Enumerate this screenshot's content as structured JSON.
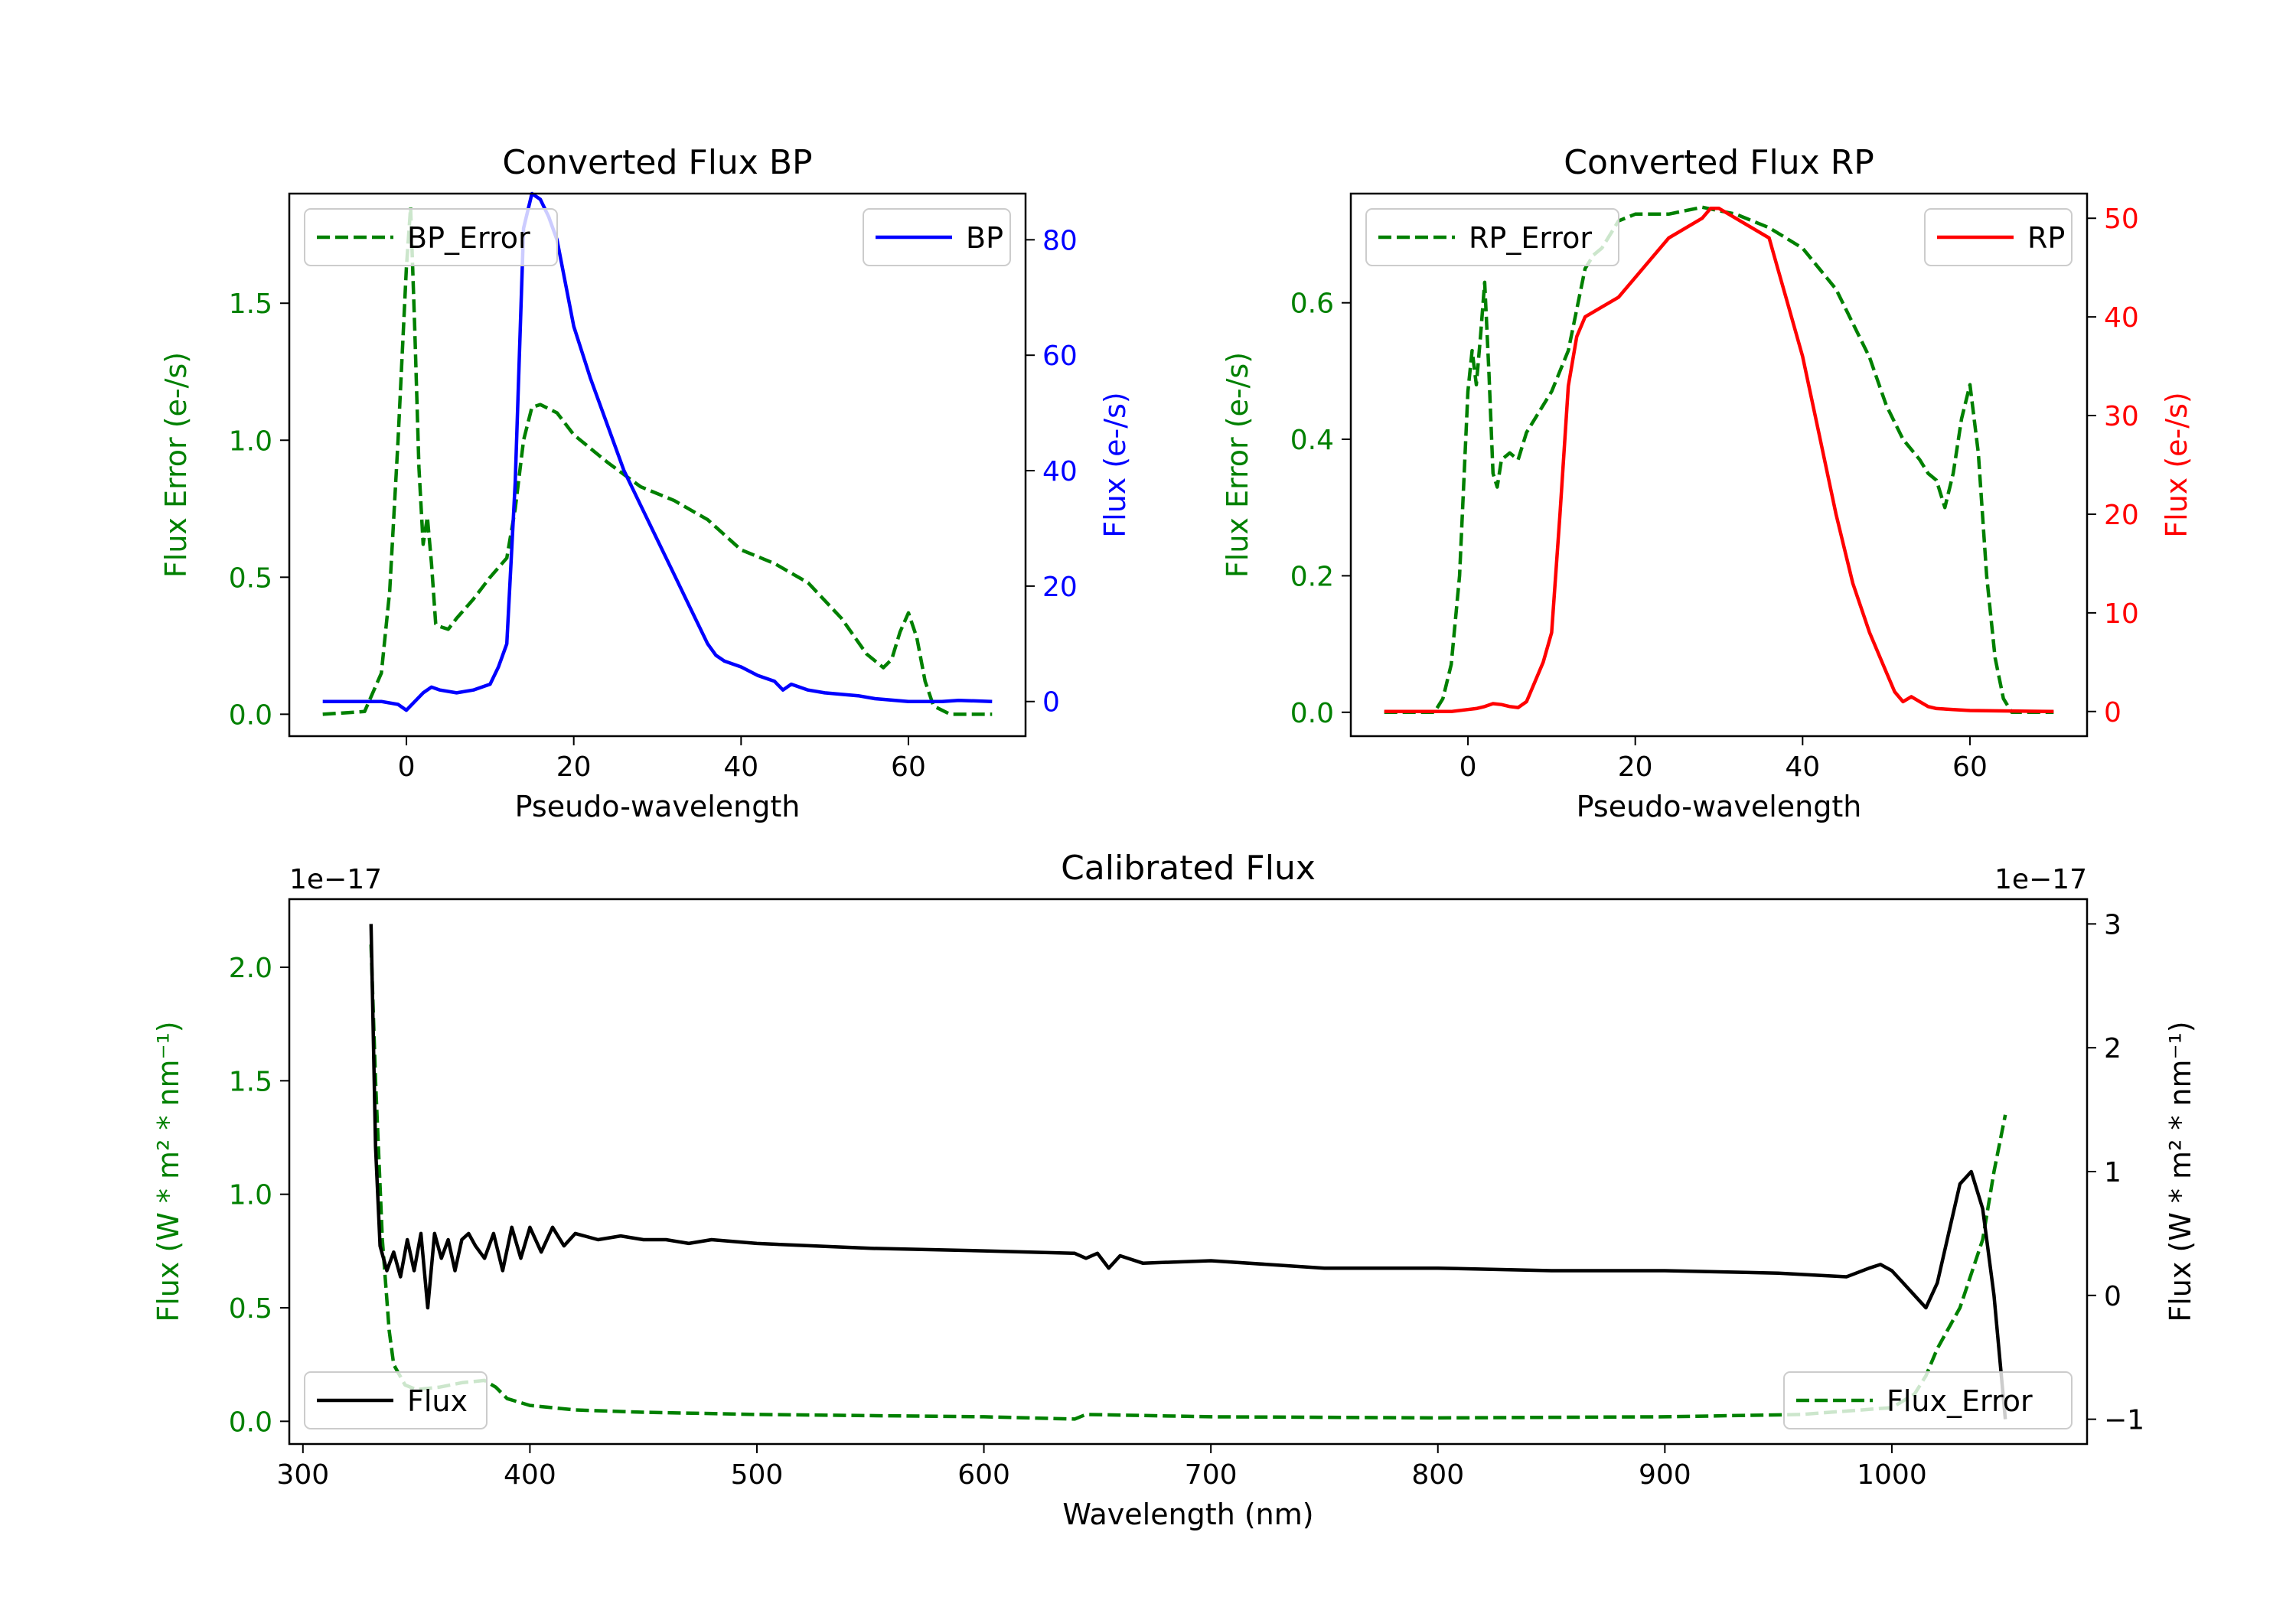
{
  "colors": {
    "bp": "#0000ff",
    "rp": "#ff0000",
    "error": "#008000",
    "flux": "#000000"
  },
  "chart_data": [
    {
      "type": "line",
      "title": "Converted Flux BP",
      "xlabel": "Pseudo-wavelength",
      "ylabel_left": "Flux Error (e-/s)",
      "ylabel_right": "Flux (e-/s)",
      "xlim": [
        -14,
        74
      ],
      "ylim_left": [
        -0.08,
        1.9
      ],
      "ylim_right": [
        -6,
        88
      ],
      "xticks": [
        0,
        20,
        40,
        60
      ],
      "yticks_left": [
        "0.0",
        "0.5",
        "1.0",
        "1.5"
      ],
      "yticks_right": [
        "0",
        "20",
        "40",
        "60",
        "80"
      ],
      "legend_left": {
        "label": "BP_Error",
        "position": "upper left"
      },
      "legend_right": {
        "label": "BP",
        "position": "upper right"
      },
      "series": [
        {
          "name": "BP_Error",
          "axis": "left",
          "style": "dashed",
          "x": [
            -10,
            -5,
            -3,
            -2,
            -1,
            0,
            0.5,
            1,
            1.5,
            2,
            2.5,
            3,
            3.5,
            4,
            5,
            6,
            8,
            10,
            12,
            13,
            14,
            15,
            16,
            18,
            20,
            24,
            28,
            32,
            36,
            40,
            44,
            48,
            52,
            55,
            57,
            58,
            59,
            60,
            61,
            62,
            63,
            65,
            70
          ],
          "y": [
            0.0,
            0.01,
            0.15,
            0.45,
            1.0,
            1.63,
            1.85,
            1.4,
            0.9,
            0.62,
            0.72,
            0.55,
            0.33,
            0.32,
            0.31,
            0.35,
            0.42,
            0.5,
            0.57,
            0.75,
            1.0,
            1.12,
            1.13,
            1.1,
            1.02,
            0.92,
            0.83,
            0.78,
            0.71,
            0.6,
            0.55,
            0.48,
            0.35,
            0.22,
            0.17,
            0.2,
            0.3,
            0.37,
            0.28,
            0.12,
            0.03,
            0.0,
            0.0
          ]
        },
        {
          "name": "BP",
          "axis": "right",
          "style": "solid",
          "x": [
            -10,
            -5,
            -3,
            -1,
            0,
            1,
            2,
            3,
            4,
            6,
            8,
            10,
            11,
            12,
            13,
            14,
            15,
            16,
            17,
            18,
            20,
            22,
            24,
            26,
            28,
            30,
            32,
            34,
            36,
            37,
            38,
            40,
            42,
            44,
            45,
            46,
            48,
            50,
            54,
            56,
            60,
            64,
            66,
            70
          ],
          "y": [
            0,
            0,
            0,
            -0.5,
            -1.5,
            0,
            1.5,
            2.5,
            2,
            1.5,
            2,
            3,
            6,
            10,
            38,
            82,
            88,
            87,
            84,
            80,
            65,
            56,
            48,
            40,
            34,
            28,
            22,
            16,
            10,
            8,
            7,
            6,
            4.5,
            3.5,
            2,
            3,
            2,
            1.5,
            1,
            0.5,
            0,
            0,
            0.2,
            0
          ]
        }
      ]
    },
    {
      "type": "line",
      "title": "Converted Flux RP",
      "xlabel": "Pseudo-wavelength",
      "ylabel_left": "Flux Error (e-/s)",
      "ylabel_right": "Flux (e-/s)",
      "xlim": [
        -14,
        74
      ],
      "ylim_left": [
        -0.035,
        0.76
      ],
      "ylim_right": [
        -2.5,
        52.5
      ],
      "xticks": [
        0,
        20,
        40,
        60
      ],
      "yticks_left": [
        "0.0",
        "0.2",
        "0.4",
        "0.6"
      ],
      "yticks_right": [
        "0",
        "10",
        "20",
        "30",
        "40",
        "50"
      ],
      "legend_left": {
        "label": "RP_Error",
        "position": "upper left"
      },
      "legend_right": {
        "label": "RP",
        "position": "upper right"
      },
      "series": [
        {
          "name": "RP_Error",
          "axis": "left",
          "style": "dashed",
          "x": [
            -10,
            -4,
            -3,
            -2,
            -1,
            0,
            0.5,
            1,
            1.5,
            2,
            2.5,
            3,
            3.5,
            4,
            5,
            6,
            7,
            8,
            10,
            12,
            14,
            15,
            16,
            18,
            20,
            24,
            28,
            32,
            36,
            40,
            44,
            48,
            50,
            52,
            54,
            55,
            56,
            57,
            58,
            59,
            60,
            61,
            62,
            63,
            64,
            65,
            70
          ],
          "y": [
            0.0,
            0.0,
            0.02,
            0.07,
            0.2,
            0.47,
            0.53,
            0.48,
            0.55,
            0.63,
            0.5,
            0.35,
            0.33,
            0.37,
            0.38,
            0.37,
            0.41,
            0.43,
            0.47,
            0.53,
            0.65,
            0.67,
            0.68,
            0.72,
            0.73,
            0.73,
            0.74,
            0.73,
            0.71,
            0.68,
            0.62,
            0.52,
            0.45,
            0.4,
            0.37,
            0.35,
            0.34,
            0.3,
            0.35,
            0.43,
            0.48,
            0.38,
            0.2,
            0.08,
            0.02,
            0.0,
            0.0
          ]
        },
        {
          "name": "RP",
          "axis": "right",
          "style": "solid",
          "x": [
            -10,
            -2,
            0,
            1,
            2,
            3,
            4,
            5,
            6,
            7,
            8,
            9,
            10,
            11,
            12,
            13,
            14,
            16,
            18,
            20,
            22,
            24,
            26,
            28,
            29,
            30,
            32,
            34,
            36,
            37,
            38,
            40,
            42,
            44,
            46,
            48,
            50,
            51,
            52,
            53,
            54,
            55,
            56,
            58,
            60,
            70
          ],
          "y": [
            0,
            0,
            0.2,
            0.3,
            0.5,
            0.8,
            0.7,
            0.5,
            0.4,
            1,
            3,
            5,
            8,
            20,
            33,
            38,
            40,
            41,
            42,
            44,
            46,
            48,
            49,
            50,
            51,
            51,
            50,
            49,
            48,
            45,
            42,
            36,
            28,
            20,
            13,
            8,
            4,
            2,
            1,
            1.5,
            1,
            0.5,
            0.3,
            0.2,
            0.1,
            0
          ]
        }
      ]
    },
    {
      "type": "line",
      "title": "Calibrated Flux",
      "xlabel": "Wavelength (nm)",
      "ylabel_left": "Flux (W * m² * nm⁻¹)",
      "ylabel_right": "Flux (W * m² * nm⁻¹)",
      "offset_left": "1e−17",
      "offset_right": "1e−17",
      "xlim": [
        294,
        1086
      ],
      "ylim_left": [
        -0.1,
        2.3
      ],
      "ylim_right": [
        -1.2,
        3.2
      ],
      "xticks": [
        300,
        400,
        500,
        600,
        700,
        800,
        900,
        1000
      ],
      "yticks_left": [
        "0.0",
        "0.5",
        "1.0",
        "1.5",
        "2.0"
      ],
      "yticks_right": [
        "−1",
        "0",
        "1",
        "2",
        "3"
      ],
      "legend_left": {
        "label": "Flux",
        "position": "lower left"
      },
      "legend_right": {
        "label": "Flux_Error",
        "position": "lower right"
      },
      "series": [
        {
          "name": "Flux_Error",
          "axis": "left",
          "style": "dashed",
          "x": [
            330,
            332,
            335,
            338,
            340,
            345,
            350,
            360,
            370,
            380,
            385,
            390,
            400,
            420,
            450,
            500,
            550,
            600,
            640,
            645,
            700,
            800,
            900,
            960,
            1000,
            1010,
            1015,
            1020,
            1030,
            1040,
            1045,
            1050
          ],
          "y": [
            2.1,
            1.5,
            0.8,
            0.4,
            0.25,
            0.16,
            0.14,
            0.15,
            0.17,
            0.18,
            0.15,
            0.1,
            0.07,
            0.05,
            0.04,
            0.03,
            0.025,
            0.02,
            0.01,
            0.03,
            0.02,
            0.015,
            0.02,
            0.03,
            0.06,
            0.12,
            0.2,
            0.32,
            0.5,
            0.8,
            1.1,
            1.35
          ]
        },
        {
          "name": "Flux",
          "axis": "right",
          "style": "solid",
          "x": [
            330,
            332,
            334,
            337,
            340,
            343,
            346,
            349,
            352,
            355,
            358,
            361,
            364,
            367,
            370,
            373,
            376,
            380,
            384,
            388,
            392,
            396,
            400,
            405,
            410,
            415,
            420,
            430,
            440,
            450,
            460,
            470,
            480,
            500,
            550,
            600,
            640,
            645,
            650,
            655,
            660,
            670,
            700,
            750,
            800,
            850,
            900,
            950,
            980,
            990,
            995,
            1000,
            1005,
            1010,
            1015,
            1020,
            1025,
            1030,
            1035,
            1040,
            1045,
            1050
          ],
          "y": [
            3.0,
            1.2,
            0.4,
            0.2,
            0.35,
            0.15,
            0.45,
            0.2,
            0.5,
            -0.1,
            0.5,
            0.3,
            0.45,
            0.2,
            0.45,
            0.5,
            0.4,
            0.3,
            0.5,
            0.2,
            0.55,
            0.3,
            0.55,
            0.35,
            0.55,
            0.4,
            0.5,
            0.45,
            0.48,
            0.45,
            0.45,
            0.42,
            0.45,
            0.42,
            0.38,
            0.36,
            0.34,
            0.3,
            0.34,
            0.22,
            0.32,
            0.26,
            0.28,
            0.22,
            0.22,
            0.2,
            0.2,
            0.18,
            0.15,
            0.22,
            0.25,
            0.2,
            0.1,
            0.0,
            -0.1,
            0.1,
            0.5,
            0.9,
            1.0,
            0.7,
            0.0,
            -1.0
          ]
        }
      ]
    }
  ]
}
